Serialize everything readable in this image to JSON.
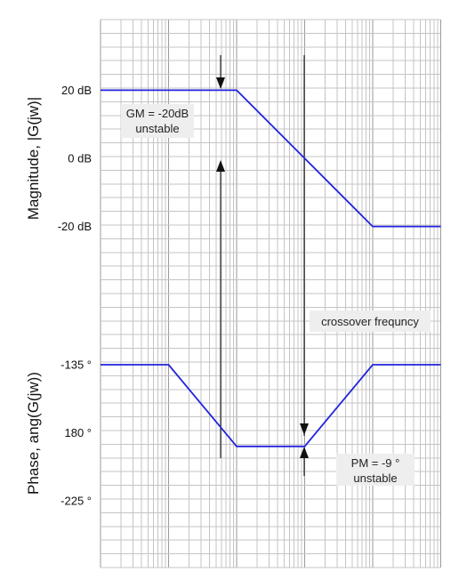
{
  "chart_data": [
    {
      "type": "line",
      "axis_title": "Magnitude, |G(jw)|",
      "y_ticks": [
        {
          "value": 20,
          "label": "20 dB"
        },
        {
          "value": 0,
          "label": "0 dB"
        },
        {
          "value": -20,
          "label": "-20 dB"
        }
      ],
      "x_scale": "log",
      "x_decades": 5,
      "series": [
        {
          "color": "#2222dd",
          "x": [
            0,
            2,
            3,
            4,
            5
          ],
          "y": [
            20,
            20,
            0,
            -20,
            -20
          ]
        }
      ],
      "annotation": {
        "lines": [
          "GM = -20dB",
          "unstable"
        ]
      }
    },
    {
      "type": "line",
      "axis_title": "Phase, ang(G(jw))",
      "y_ticks": [
        {
          "value": -135,
          "label": "-135 °"
        },
        {
          "value": -180,
          "label": "180 °"
        },
        {
          "value": -225,
          "label": "-225 °"
        }
      ],
      "x_scale": "log",
      "x_decades": 5,
      "series": [
        {
          "color": "#2222dd",
          "x": [
            0,
            1,
            2,
            3,
            4,
            5
          ],
          "y": [
            -135,
            -135,
            -189,
            -189,
            -135,
            -135
          ]
        }
      ],
      "annotation": {
        "lines": [
          "PM = -9 °",
          "unstable"
        ]
      }
    }
  ],
  "crossover_label": "crossover frequncy"
}
